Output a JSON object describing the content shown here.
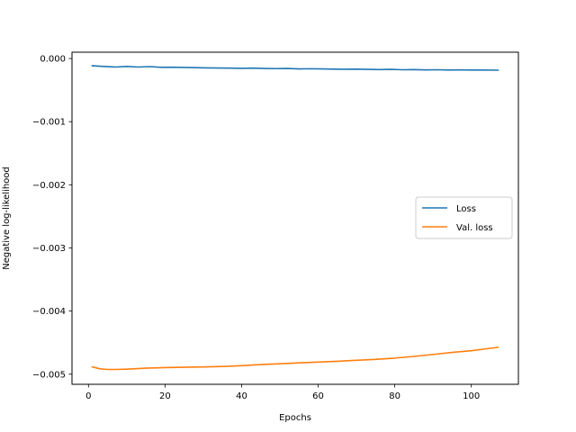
{
  "chart_data": {
    "type": "line",
    "title": "",
    "xlabel": "Epochs",
    "ylabel": "Negative log-likelihood",
    "xlim": [
      -4.3,
      112.3
    ],
    "ylim": [
      -0.00516,
      0.0001
    ],
    "xticks": [
      0,
      20,
      40,
      60,
      80,
      100
    ],
    "xtick_labels": [
      "0",
      "20",
      "40",
      "60",
      "80",
      "100"
    ],
    "yticks": [
      0,
      -0.001,
      -0.002,
      -0.003,
      -0.004,
      -0.005
    ],
    "ytick_labels": [
      "0.000",
      "−0.001",
      "−0.002",
      "−0.003",
      "−0.004",
      "−0.005"
    ],
    "grid": false,
    "legend": {
      "placement": "center-right"
    },
    "series": [
      {
        "name": "Loss",
        "color": "#1f77b4",
        "x": [
          1,
          4,
          7,
          10,
          13,
          16,
          19,
          22,
          25,
          28,
          31,
          34,
          37,
          40,
          43,
          46,
          49,
          52,
          55,
          58,
          61,
          64,
          67,
          70,
          73,
          76,
          79,
          82,
          85,
          88,
          91,
          94,
          97,
          100,
          103,
          107
        ],
        "y": [
          -0.000115,
          -0.000125,
          -0.000135,
          -0.000125,
          -0.000135,
          -0.000128,
          -0.00014,
          -0.000138,
          -0.000142,
          -0.000145,
          -0.000148,
          -0.00015,
          -0.000152,
          -0.000155,
          -0.000152,
          -0.000158,
          -0.00016,
          -0.000158,
          -0.000165,
          -0.000162,
          -0.000165,
          -0.000168,
          -0.00017,
          -0.000168,
          -0.000172,
          -0.000175,
          -0.000172,
          -0.000178,
          -0.000176,
          -0.00018,
          -0.000178,
          -0.000182,
          -0.00018,
          -0.000183,
          -0.000182,
          -0.000185
        ]
      },
      {
        "name": "Val. loss",
        "color": "#ff7f0e",
        "x": [
          1,
          3,
          5,
          7,
          10,
          15,
          20,
          25,
          30,
          35,
          40,
          45,
          50,
          55,
          60,
          65,
          70,
          75,
          80,
          85,
          90,
          95,
          100,
          105,
          107
        ],
        "y": [
          -0.004885,
          -0.004915,
          -0.004925,
          -0.004925,
          -0.00492,
          -0.004905,
          -0.004895,
          -0.00489,
          -0.004885,
          -0.004878,
          -0.004865,
          -0.004848,
          -0.004835,
          -0.00482,
          -0.004808,
          -0.004795,
          -0.00478,
          -0.004765,
          -0.004745,
          -0.004718,
          -0.004688,
          -0.004655,
          -0.004628,
          -0.00459,
          -0.004575
        ]
      }
    ]
  }
}
